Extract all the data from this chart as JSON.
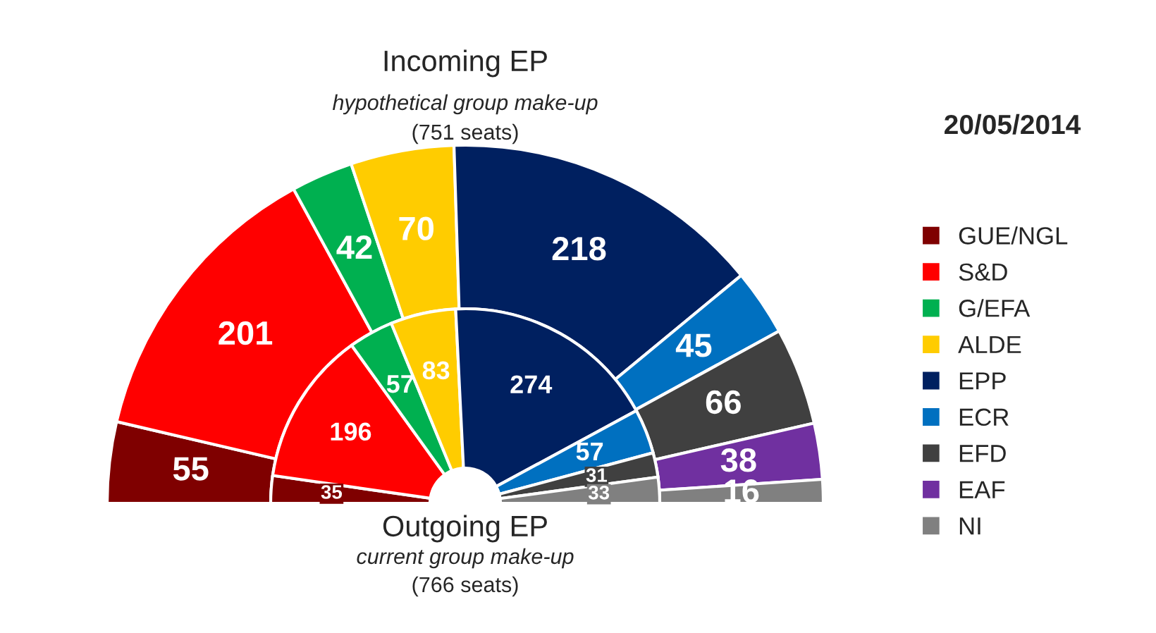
{
  "chart_data": {
    "type": "donut",
    "title": "Incoming EP",
    "subtitle": "hypothetical group make-up",
    "annotations": [
      "(751 seats)",
      "Outgoing EP",
      "current group make-up",
      "(766 seats)",
      "20/05/2014"
    ],
    "categories": [
      "GUE/NGL",
      "S&D",
      "G/EFA",
      "ALDE",
      "EPP",
      "ECR",
      "EFD",
      "EAF",
      "NI"
    ],
    "series": [
      {
        "values": [
          55,
          201,
          42,
          70,
          218,
          45,
          66,
          38,
          16
        ]
      },
      {
        "values": [
          35,
          196,
          57,
          83,
          274,
          57,
          31,
          null,
          33
        ]
      }
    ],
    "colors": [
      "#7f0000",
      "#ff0000",
      "#00b050",
      "#ffcc00",
      "#002060",
      "#0070c0",
      "#404040",
      "#7030a0",
      "#808080"
    ],
    "data_labels": true,
    "legend": "right"
  }
}
